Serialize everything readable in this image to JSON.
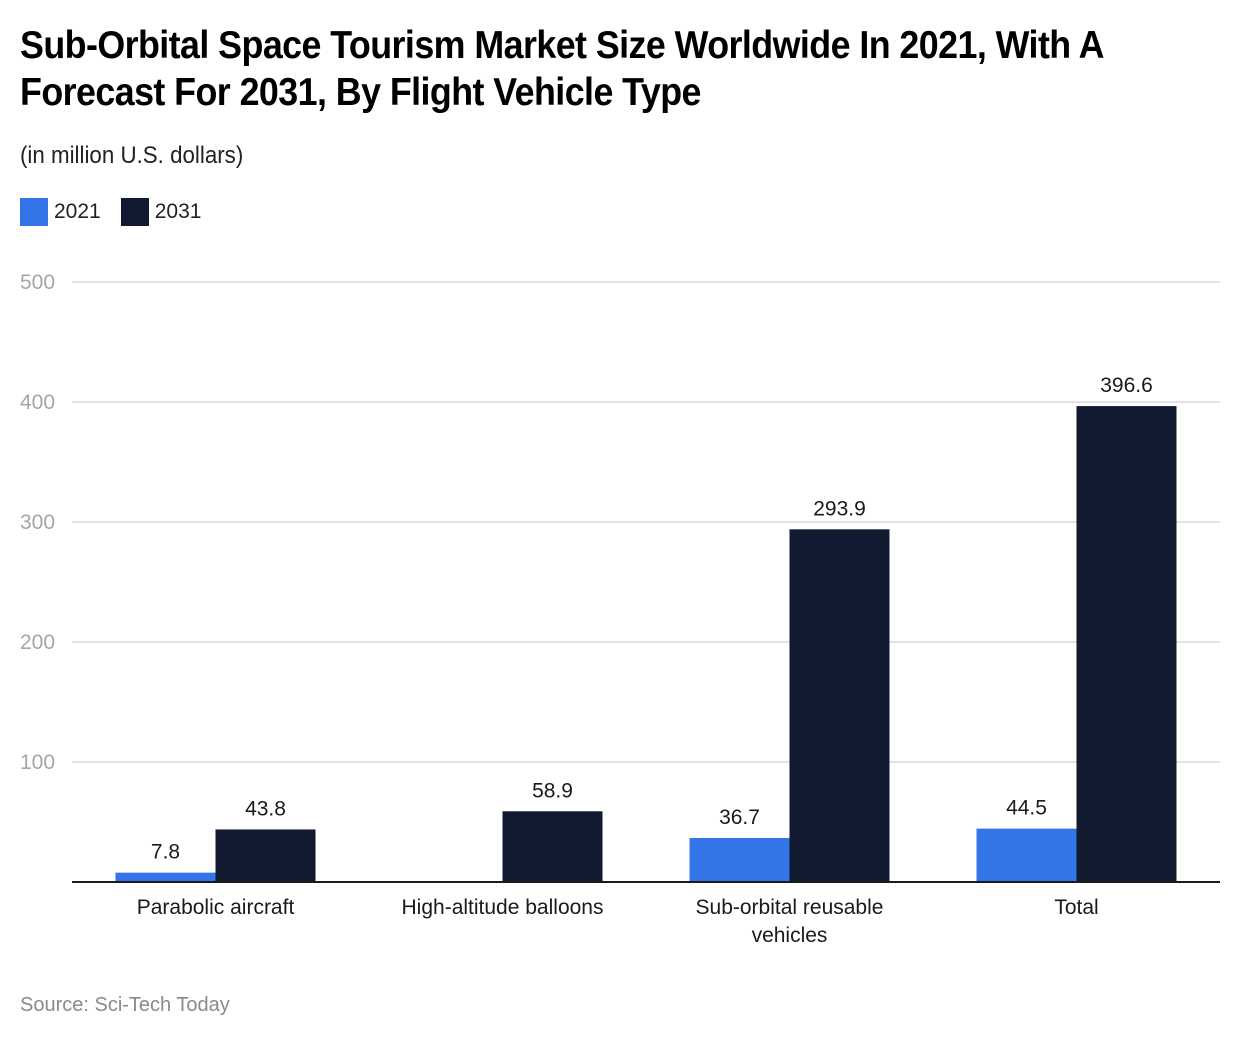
{
  "header": {
    "title": "Sub-Orbital Space Tourism Market Size Worldwide In 2021, With A Forecast For 2031, By Flight Vehicle Type",
    "subtitle": "(in million U.S. dollars)"
  },
  "legend": [
    {
      "label": "2021",
      "color": "#3375e8"
    },
    {
      "label": "2031",
      "color": "#111a31"
    }
  ],
  "footer": {
    "source": "Source: Sci-Tech Today"
  },
  "chart_data": {
    "type": "bar",
    "title": "Sub-Orbital Space Tourism Market Size Worldwide In 2021, With A Forecast For 2031, By Flight Vehicle Type",
    "subtitle": "(in million U.S. dollars)",
    "xlabel": "",
    "ylabel": "",
    "categories": [
      [
        "Parabolic aircraft"
      ],
      [
        "High-altitude balloons"
      ],
      [
        "Sub-orbital reusable",
        "vehicles"
      ],
      [
        "Total"
      ]
    ],
    "series": [
      {
        "name": "2021",
        "color": "#3375e8",
        "values": [
          7.8,
          null,
          36.7,
          44.5
        ]
      },
      {
        "name": "2031",
        "color": "#111a31",
        "values": [
          43.8,
          58.9,
          293.9,
          396.6
        ]
      }
    ],
    "ylim": [
      0,
      500
    ],
    "yticks": [
      100,
      200,
      300,
      400,
      500
    ],
    "grid": true,
    "legend_position": "top-left",
    "data_labels": true,
    "source": "Source: Sci-Tech Today"
  }
}
